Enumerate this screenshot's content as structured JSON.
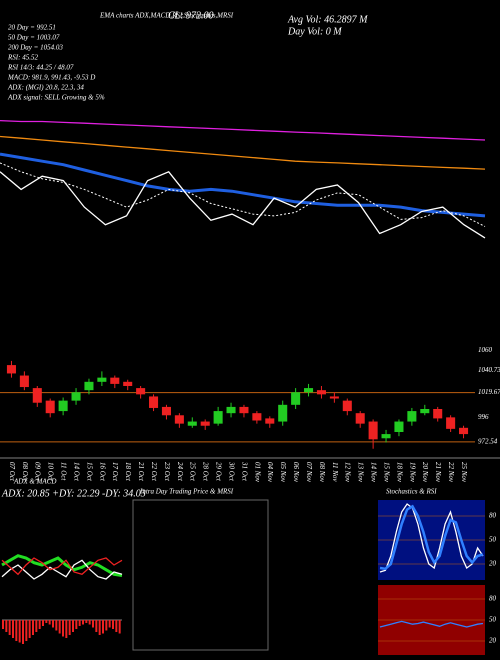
{
  "chart_data": [
    {
      "type": "line",
      "title": "CL: 972.00",
      "header": "EMA charts ADX,MACD,RSI,Stochastics,MRSI",
      "annotations": [
        "20 Day = 992.51",
        "50 Day = 1003.07",
        "200 Day = 1054.03",
        "RSI: 45.52",
        "RSI 14/3: 44.25 / 48.07",
        "MACD: 981.9, 991.43, -9.53 D",
        "ADX: (MGI) 20.8, 22.3, 34",
        "ADX signal: SELL Growing & 5%"
      ],
      "right_annotations": [
        "Avg Vol: 46.2897 M",
        "Day Vol: 0 M"
      ],
      "ylim": [
        960,
        1130
      ],
      "series": [
        {
          "name": "EMA 200",
          "color": "#e020e0",
          "values": [
            1118,
            1117,
            1117,
            1116,
            1115,
            1114,
            1113,
            1112,
            1111,
            1110,
            1109,
            1108,
            1107,
            1106,
            1105,
            1104,
            1103,
            1102,
            1101,
            1100,
            1099,
            1098,
            1097,
            1096
          ]
        },
        {
          "name": "EMA 100",
          "color": "#f08a10",
          "values": [
            1100,
            1098,
            1096,
            1094,
            1092,
            1090,
            1088,
            1086,
            1084,
            1082,
            1080,
            1078,
            1076,
            1074,
            1072,
            1071,
            1070,
            1069,
            1068,
            1067,
            1066,
            1065,
            1064,
            1063
          ]
        },
        {
          "name": "EMA 50",
          "color": "#1f5fe0",
          "values": [
            1080,
            1076,
            1072,
            1068,
            1062,
            1056,
            1050,
            1044,
            1040,
            1038,
            1040,
            1038,
            1034,
            1030,
            1026,
            1024,
            1022,
            1022,
            1022,
            1020,
            1016,
            1014,
            1012,
            1010
          ]
        },
        {
          "name": "EMA 20",
          "color": "#ffffff",
          "values": [
            1070,
            1060,
            1052,
            1048,
            1040,
            1030,
            1020,
            1028,
            1040,
            1036,
            1024,
            1018,
            1012,
            1010,
            1014,
            1028,
            1036,
            1034,
            1020,
            1006,
            1008,
            1016,
            1010,
            998
          ]
        },
        {
          "name": "Price",
          "color": "#ffffff",
          "values": [
            1060,
            1040,
            1055,
            1050,
            1020,
            1000,
            1010,
            1050,
            1060,
            1030,
            1005,
            1012,
            1000,
            1030,
            1020,
            1040,
            1045,
            1025,
            990,
            1000,
            1015,
            1020,
            1000,
            985
          ]
        }
      ]
    },
    {
      "type": "candlestick",
      "categories": [
        "07 Oct",
        "08 Oct",
        "09 Oct",
        "10 Oct",
        "11 Oct",
        "14 Oct",
        "15 Oct",
        "16 Oct",
        "17 Oct",
        "18 Oct",
        "21 Oct",
        "22 Oct",
        "23 Oct",
        "24 Oct",
        "25 Oct",
        "28 Oct",
        "29 Oct",
        "30 Oct",
        "31 Oct",
        "01 Nov",
        "04 Nov",
        "05 Nov",
        "06 Nov",
        "07 Nov",
        "08 Nov",
        "11 Nov",
        "12 Nov",
        "13 Nov",
        "14 Nov",
        "15 Nov",
        "18 Nov",
        "19 Nov",
        "20 Nov",
        "21 Nov",
        "22 Nov",
        "25 Nov"
      ],
      "open": [
        1046,
        1036,
        1024,
        1012,
        1002,
        1012,
        1022,
        1030,
        1034,
        1030,
        1024,
        1016,
        1006,
        998,
        988,
        992,
        990,
        1000,
        1006,
        1000,
        995,
        992,
        1008,
        1020,
        1022,
        1016,
        1012,
        1000,
        992,
        976,
        982,
        992,
        1000,
        1004,
        996,
        986
      ],
      "high": [
        1050,
        1040,
        1026,
        1014,
        1015,
        1024,
        1033,
        1040,
        1036,
        1032,
        1026,
        1018,
        1008,
        1000,
        996,
        994,
        1006,
        1010,
        1008,
        1002,
        997,
        1012,
        1024,
        1028,
        1026,
        1020,
        1014,
        1002,
        994,
        984,
        994,
        1005,
        1008,
        1006,
        998,
        988
      ],
      "low": [
        1034,
        1022,
        1006,
        996,
        998,
        1008,
        1018,
        1026,
        1024,
        1022,
        1014,
        1002,
        994,
        986,
        986,
        984,
        988,
        996,
        996,
        990,
        986,
        988,
        1004,
        1016,
        1014,
        1010,
        998,
        986,
        966,
        972,
        978,
        988,
        998,
        992,
        982,
        976
      ],
      "close": [
        1038,
        1025,
        1010,
        1000,
        1012,
        1020,
        1030,
        1034,
        1028,
        1026,
        1018,
        1005,
        998,
        990,
        992,
        988,
        1002,
        1006,
        1000,
        993,
        990,
        1008,
        1020,
        1024,
        1018,
        1014,
        1002,
        990,
        975,
        980,
        992,
        1002,
        1004,
        995,
        985,
        980
      ],
      "up_color": "#22cc22",
      "down_color": "#ee2222",
      "ylim": [
        960,
        1070
      ],
      "yticks": [
        1060,
        1040.73,
        1019.67,
        996,
        972.54
      ],
      "level_lines": [
        1019.67,
        972.54
      ],
      "level_color": "#c06010"
    },
    {
      "type": "line",
      "title": "ADX & MACD",
      "subtitle": "ADX: 20.85 +DY: 22.29 -DY: 34.03",
      "ylim": [
        0,
        60
      ],
      "series": [
        {
          "name": "ADX",
          "color": "#22dd22",
          "values": [
            30,
            34,
            38,
            36,
            32,
            30,
            33,
            36,
            30,
            26,
            28,
            32,
            30,
            26,
            22,
            21
          ]
        },
        {
          "name": "+DI",
          "color": "#ffffff",
          "values": [
            20,
            26,
            30,
            24,
            18,
            22,
            28,
            24,
            20,
            30,
            34,
            26,
            20,
            18,
            24,
            22
          ]
        },
        {
          "name": "-DI",
          "color": "#ee2222",
          "values": [
            34,
            28,
            22,
            30,
            36,
            32,
            26,
            28,
            34,
            24,
            22,
            28,
            34,
            36,
            30,
            34
          ]
        }
      ]
    },
    {
      "type": "bar",
      "values": [
        -6,
        -8,
        -10,
        -12,
        -14,
        -15,
        -16,
        -14,
        -12,
        -10,
        -8,
        -6,
        -4,
        -2,
        -3,
        -5,
        -7,
        -9,
        -11,
        -12,
        -10,
        -8,
        -6,
        -4,
        -3,
        -2,
        -3,
        -5,
        -8,
        -10,
        -9,
        -7,
        -5,
        -6,
        -8,
        -9
      ],
      "color": "#ee2222",
      "ylim": [
        -20,
        10
      ]
    },
    {
      "type": "line",
      "title": "Stochastics & RSI",
      "ylim": [
        0,
        100
      ],
      "yticks": [
        20,
        50,
        80
      ],
      "background": "#001080",
      "series": [
        {
          "name": "%K",
          "color": "#ffffff",
          "values": [
            10,
            12,
            30,
            60,
            85,
            95,
            90,
            70,
            40,
            20,
            15,
            40,
            70,
            85,
            60,
            30,
            15,
            20,
            40,
            30
          ]
        },
        {
          "name": "%D",
          "color": "#3080ff",
          "values": [
            15,
            14,
            20,
            45,
            70,
            88,
            92,
            80,
            60,
            35,
            22,
            30,
            55,
            75,
            72,
            50,
            30,
            22,
            30,
            32
          ]
        }
      ]
    },
    {
      "type": "line",
      "ylim": [
        0,
        100
      ],
      "yticks": [
        20,
        50,
        80
      ],
      "background": "#900000",
      "series": [
        {
          "name": "RSI",
          "color": "#3080ff",
          "values": [
            40,
            42,
            44,
            46,
            48,
            46,
            44,
            45,
            47,
            45,
            43,
            41,
            44,
            46,
            44,
            42,
            40,
            42,
            44,
            45
          ]
        }
      ]
    },
    {
      "type": "line",
      "title": "Intra Day Trading Price & MRSI",
      "series": []
    }
  ]
}
